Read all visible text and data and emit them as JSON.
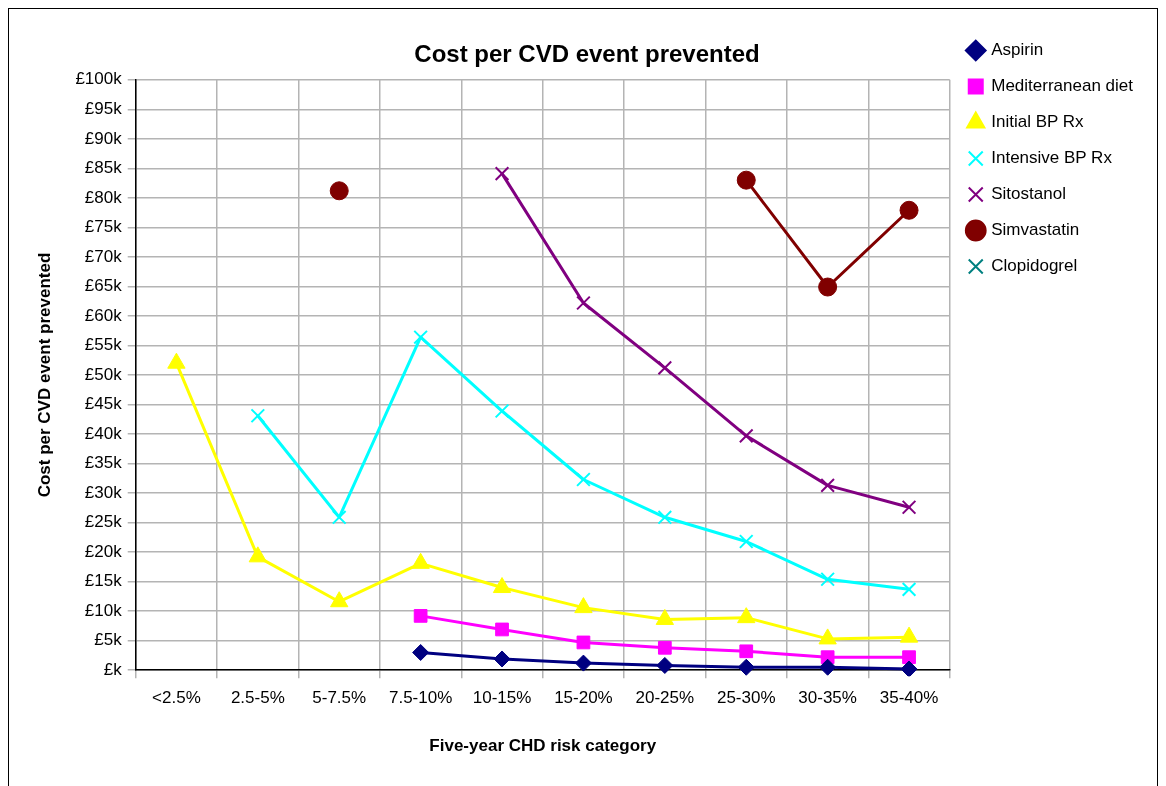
{
  "chart_data": {
    "type": "line",
    "title": "Cost per CVD event prevented",
    "xlabel": "Five-year CHD risk category",
    "ylabel": "Cost per CVD event prevented",
    "categories": [
      "<2.5%",
      "2.5-5%",
      "5-7.5%",
      "7.5-10%",
      "10-15%",
      "15-20%",
      "20-25%",
      "25-30%",
      "30-35%",
      "35-40%"
    ],
    "series": [
      {
        "name": "Aspirin",
        "color": "#000080",
        "marker": "diamond",
        "values": [
          null,
          null,
          null,
          3.0,
          1.9,
          1.2,
          0.8,
          0.5,
          0.5,
          0.2
        ]
      },
      {
        "name": "Mediterranean diet",
        "color": "#ff00ff",
        "marker": "square",
        "values": [
          null,
          null,
          null,
          9.2,
          6.9,
          4.7,
          3.8,
          3.2,
          2.2,
          2.2
        ]
      },
      {
        "name": "Initial BP Rx",
        "color": "#ffff00",
        "marker": "triangle",
        "values": [
          52,
          19.2,
          11.6,
          18.1,
          14.0,
          10.6,
          8.6,
          8.9,
          5.3,
          5.6
        ]
      },
      {
        "name": "Intensive BP Rx",
        "color": "#00ffff",
        "marker": "cross",
        "values": [
          null,
          43.1,
          25.9,
          56.4,
          43.9,
          32.3,
          25.9,
          21.8,
          15.4,
          13.7
        ]
      },
      {
        "name": "Sitostanol",
        "color": "#800080",
        "marker": "cross",
        "values": [
          null,
          null,
          null,
          null,
          84.1,
          62.2,
          51.2,
          39.7,
          31.3,
          27.6
        ]
      },
      {
        "name": "Simvastatin",
        "color": "#800000",
        "marker": "circle",
        "values": [
          null,
          null,
          81.2,
          null,
          null,
          null,
          null,
          83.0,
          64.9,
          77.9
        ]
      },
      {
        "name": "Clopidogrel",
        "color": "#008080",
        "marker": "cross",
        "values": [
          null,
          null,
          null,
          null,
          null,
          null,
          null,
          null,
          null,
          null
        ]
      }
    ],
    "ylim": [
      0,
      100
    ],
    "yticks": [
      {
        "value": 0,
        "label": "£k"
      },
      {
        "value": 5,
        "label": "£5k"
      },
      {
        "value": 10,
        "label": "£10k"
      },
      {
        "value": 15,
        "label": "£15k"
      },
      {
        "value": 20,
        "label": "£20k"
      },
      {
        "value": 25,
        "label": "£25k"
      },
      {
        "value": 30,
        "label": "£30k"
      },
      {
        "value": 35,
        "label": "£35k"
      },
      {
        "value": 40,
        "label": "£40k"
      },
      {
        "value": 45,
        "label": "£45k"
      },
      {
        "value": 50,
        "label": "£50k"
      },
      {
        "value": 55,
        "label": "£55k"
      },
      {
        "value": 60,
        "label": "£60k"
      },
      {
        "value": 65,
        "label": "£65k"
      },
      {
        "value": 70,
        "label": "£70k"
      },
      {
        "value": 75,
        "label": "£75k"
      },
      {
        "value": 80,
        "label": "£80k"
      },
      {
        "value": 85,
        "label": "£85k"
      },
      {
        "value": 90,
        "label": "£90k"
      },
      {
        "value": 95,
        "label": "£95k"
      },
      {
        "value": 100,
        "label": "£100k"
      }
    ],
    "grid": true,
    "legend": "right",
    "line_style": "solid"
  }
}
